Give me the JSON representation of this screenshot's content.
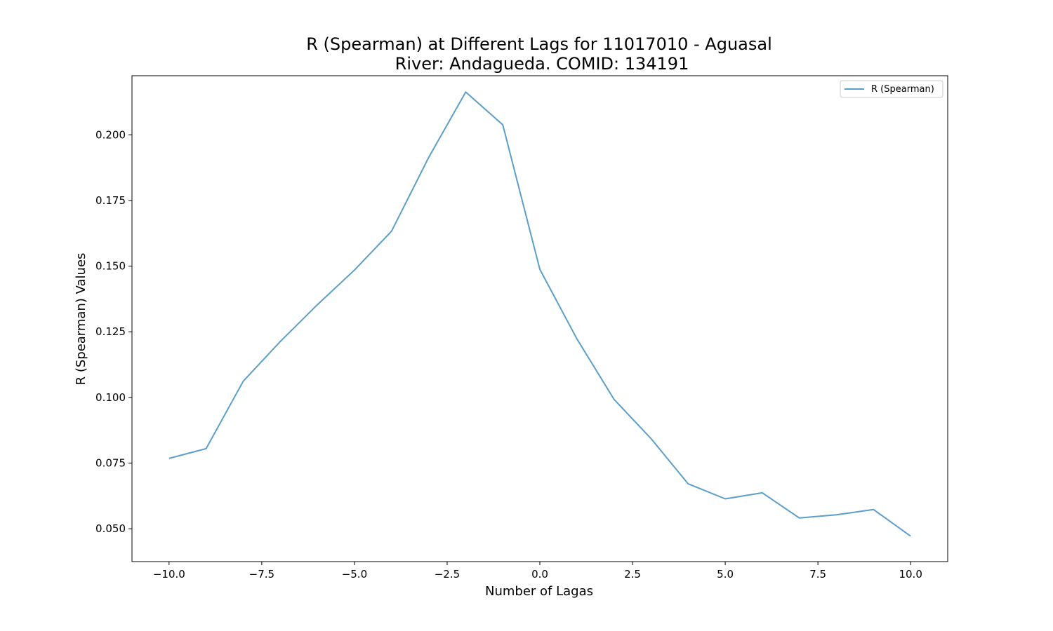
{
  "chart_data": {
    "type": "line",
    "title": "R (Spearman) at Different Lags for 11017010 - Aguasal",
    "subtitle": "River: Andagueda. COMID: 134191",
    "xlabel": "Number of Lagas",
    "ylabel": "R (Spearman) Values",
    "xlim": [
      -11,
      11
    ],
    "ylim": [
      0.0375,
      0.2225
    ],
    "xticks": [
      -10.0,
      -7.5,
      -5.0,
      -2.5,
      0.0,
      2.5,
      5.0,
      7.5,
      10.0
    ],
    "xtick_labels": [
      "−10.0",
      "−7.5",
      "−5.0",
      "−2.5",
      "0.0",
      "2.5",
      "5.0",
      "7.5",
      "10.0"
    ],
    "yticks": [
      0.05,
      0.075,
      0.1,
      0.125,
      0.15,
      0.175,
      0.2
    ],
    "ytick_labels": [
      "0.050",
      "0.075",
      "0.100",
      "0.125",
      "0.150",
      "0.175",
      "0.200"
    ],
    "grid": false,
    "legend_position": "top-right",
    "series": [
      {
        "name": "R (Spearman)",
        "color": "#5b9ec9",
        "x": [
          -10,
          -9,
          -8,
          -7,
          -6,
          -5,
          -4,
          -3,
          -2,
          -1,
          0,
          1,
          2,
          3,
          4,
          5,
          6,
          7,
          8,
          9,
          10
        ],
        "y": [
          0.0768,
          0.0805,
          0.1062,
          0.1213,
          0.1353,
          0.1485,
          0.1633,
          0.1913,
          0.2163,
          0.2038,
          0.1488,
          0.1223,
          0.0993,
          0.0843,
          0.0671,
          0.0614,
          0.0637,
          0.0541,
          0.0553,
          0.0573,
          0.0472
        ]
      }
    ]
  }
}
